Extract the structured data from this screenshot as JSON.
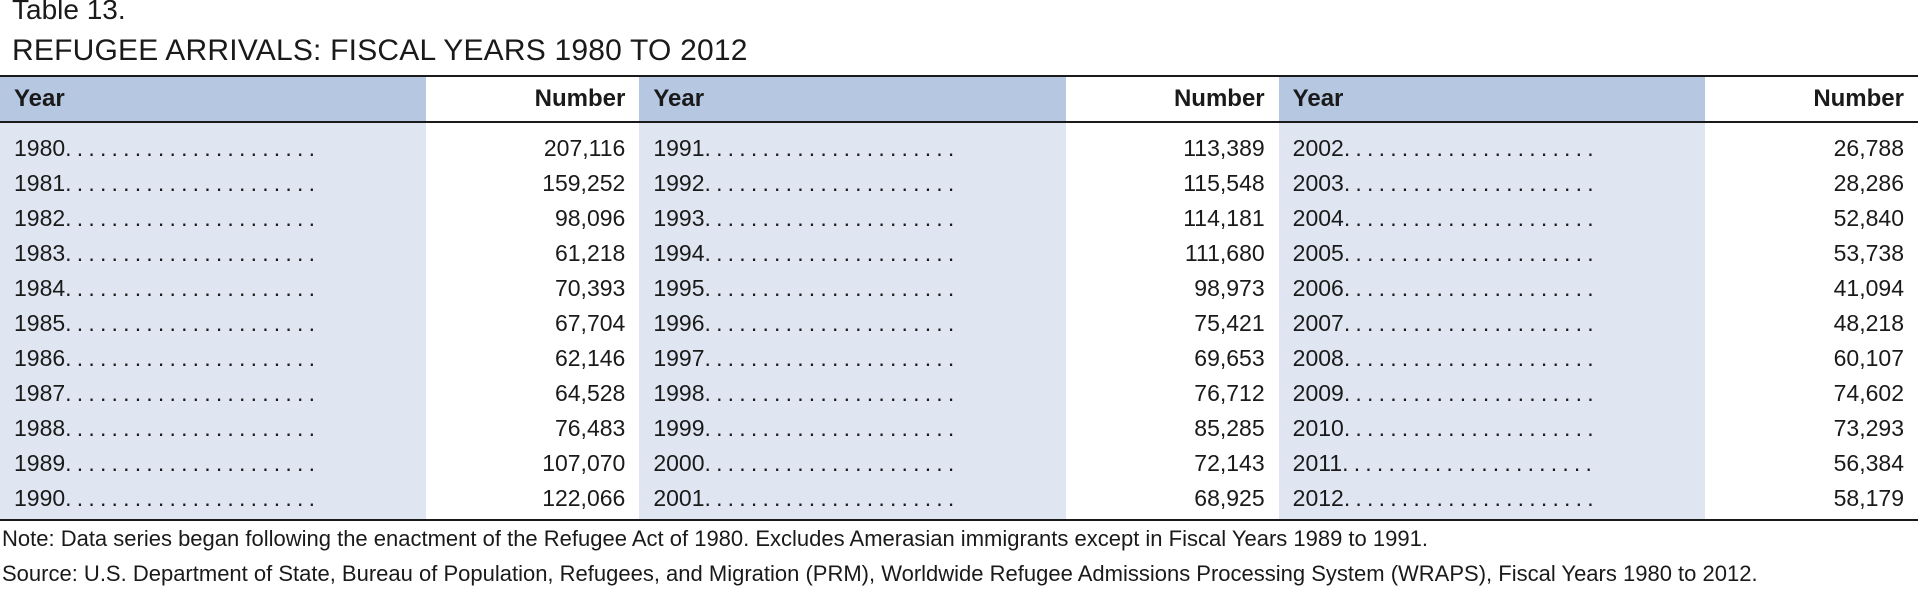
{
  "title": {
    "line1": "Table 13.",
    "line2": "REFUGEE ARRIVALS: FISCAL YEARS 1980 TO 2012"
  },
  "table": {
    "headers": [
      "Year",
      "Number",
      "Year",
      "Number",
      "Year",
      "Number"
    ],
    "leader_dots": "......................",
    "groups": [
      [
        {
          "year": "1980",
          "number": "207,116"
        },
        {
          "year": "1981",
          "number": "159,252"
        },
        {
          "year": "1982",
          "number": "98,096"
        },
        {
          "year": "1983",
          "number": "61,218"
        },
        {
          "year": "1984",
          "number": "70,393"
        },
        {
          "year": "1985",
          "number": "67,704"
        },
        {
          "year": "1986",
          "number": "62,146"
        },
        {
          "year": "1987",
          "number": "64,528"
        },
        {
          "year": "1988",
          "number": "76,483"
        },
        {
          "year": "1989",
          "number": "107,070"
        },
        {
          "year": "1990",
          "number": "122,066"
        }
      ],
      [
        {
          "year": "1991",
          "number": "113,389"
        },
        {
          "year": "1992",
          "number": "115,548"
        },
        {
          "year": "1993",
          "number": "114,181"
        },
        {
          "year": "1994",
          "number": "111,680"
        },
        {
          "year": "1995",
          "number": "98,973"
        },
        {
          "year": "1996",
          "number": "75,421"
        },
        {
          "year": "1997",
          "number": "69,653"
        },
        {
          "year": "1998",
          "number": "76,712"
        },
        {
          "year": "1999",
          "number": "85,285"
        },
        {
          "year": "2000",
          "number": "72,143"
        },
        {
          "year": "2001",
          "number": "68,925"
        }
      ],
      [
        {
          "year": "2002",
          "number": "26,788"
        },
        {
          "year": "2003",
          "number": "28,286"
        },
        {
          "year": "2004",
          "number": "52,840"
        },
        {
          "year": "2005",
          "number": "53,738"
        },
        {
          "year": "2006",
          "number": "41,094"
        },
        {
          "year": "2007",
          "number": "48,218"
        },
        {
          "year": "2008",
          "number": "60,107"
        },
        {
          "year": "2009",
          "number": "74,602"
        },
        {
          "year": "2010",
          "number": "73,293"
        },
        {
          "year": "2011",
          "number": "56,384"
        },
        {
          "year": "2012",
          "number": "58,179"
        }
      ]
    ]
  },
  "note": "Note: Data series began following the enactment of the Refugee Act of 1980. Excludes Amerasian immigrants except in Fiscal Years 1989 to 1991.",
  "source": "Source: U.S. Department of State, Bureau of Population, Refugees, and Migration (PRM), Worldwide Refugee Admissions Processing System (WRAPS), Fiscal Years 1980 to 2012.",
  "colors": {
    "header_year_bg": "#b6c7e1",
    "body_year_bg": "#dfe6f2",
    "rule": "#1a1a1a"
  }
}
